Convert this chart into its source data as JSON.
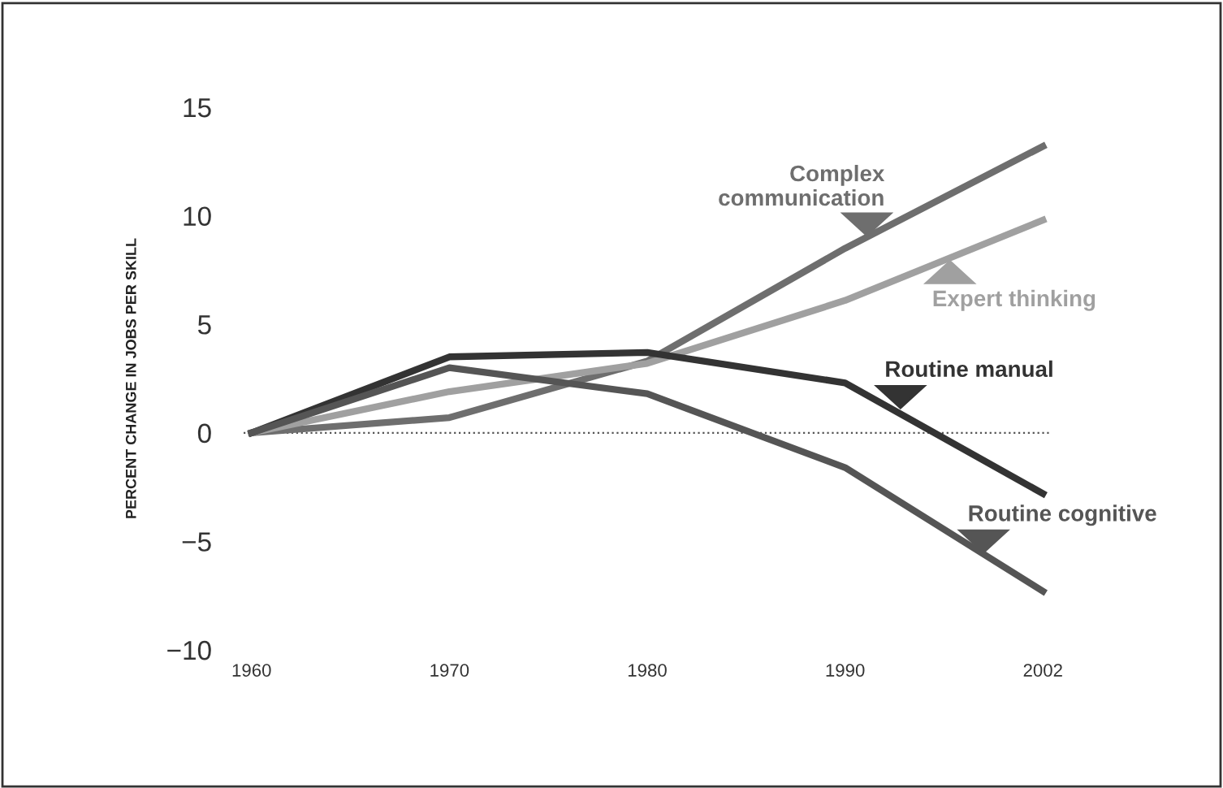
{
  "chart_data": {
    "type": "line",
    "ylabel": "PERCENT CHANGE IN JOBS PER SKILL",
    "categories": [
      "1960",
      "1970",
      "1980",
      "1990",
      "2002"
    ],
    "series": [
      {
        "name": "Complex communication",
        "color": "#6e6e6e",
        "values": [
          0,
          0.7,
          3.3,
          8.5,
          13.2
        ]
      },
      {
        "name": "Expert thinking",
        "color": "#a0a0a0",
        "values": [
          0,
          1.9,
          3.2,
          6.1,
          9.8
        ]
      },
      {
        "name": "Routine manual",
        "color": "#333333",
        "values": [
          0,
          3.5,
          3.7,
          2.3,
          -2.8
        ]
      },
      {
        "name": "Routine cognitive",
        "color": "#555555",
        "values": [
          0,
          3.0,
          1.8,
          -1.6,
          -7.3
        ]
      }
    ],
    "ylim": [
      -10,
      15
    ],
    "yticks": [
      {
        "value": -10,
        "label": "−10"
      },
      {
        "value": -5,
        "label": "−5"
      },
      0,
      5,
      10,
      15
    ],
    "ref_lines": [
      {
        "axis": "y",
        "value": 0,
        "color": "#555555",
        "line_style": "dotted"
      }
    ],
    "grid": false,
    "marker": "none",
    "line_style": "solid"
  }
}
